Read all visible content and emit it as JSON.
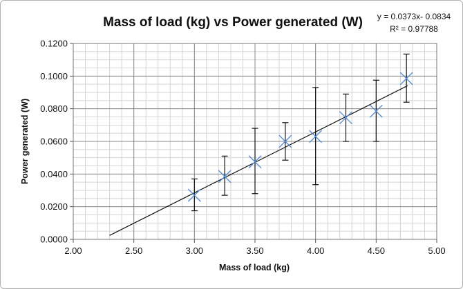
{
  "chart_data": {
    "type": "scatter",
    "title": "Mass of load (kg) vs Power generated (W)",
    "xlabel": "Mass of load (kg)",
    "ylabel": "Power generated (W)",
    "xlim": [
      2.0,
      5.0
    ],
    "ylim": [
      0.0,
      0.12
    ],
    "x_ticks": [
      "2.00",
      "2.50",
      "3.00",
      "3.50",
      "4.00",
      "4.50",
      "5.00"
    ],
    "y_ticks": [
      "0.0000",
      "0.0200",
      "0.0400",
      "0.0600",
      "0.0800",
      "0.1000",
      "0.1200"
    ],
    "x_tick_values": [
      2.0,
      2.5,
      3.0,
      3.5,
      4.0,
      4.5,
      5.0
    ],
    "y_tick_values": [
      0.0,
      0.02,
      0.04,
      0.06,
      0.08,
      0.1,
      0.12
    ],
    "grid": true,
    "minor_x_step": 0.1,
    "minor_y_step": 0.005,
    "marker": "x",
    "marker_color": "#5b8ed6",
    "series": [
      {
        "x": [
          3.0,
          3.25,
          3.5,
          3.75,
          4.0,
          4.25,
          4.5,
          4.75
        ],
        "y": [
          0.027,
          0.0385,
          0.0475,
          0.06,
          0.063,
          0.0745,
          0.0785,
          0.0985
        ],
        "y_err_low": [
          0.0175,
          0.027,
          0.028,
          0.0485,
          0.0335,
          0.06,
          0.06,
          0.084
        ],
        "y_err_high": [
          0.037,
          0.051,
          0.068,
          0.0715,
          0.093,
          0.089,
          0.0975,
          0.1135
        ]
      }
    ],
    "trendline": {
      "slope": 0.0373,
      "intercept": -0.0834,
      "x_start": 2.3,
      "x_end": 4.76,
      "equation_label": "y = 0.0373x- 0.0834",
      "r2_label": "R² = 0.97788"
    }
  }
}
